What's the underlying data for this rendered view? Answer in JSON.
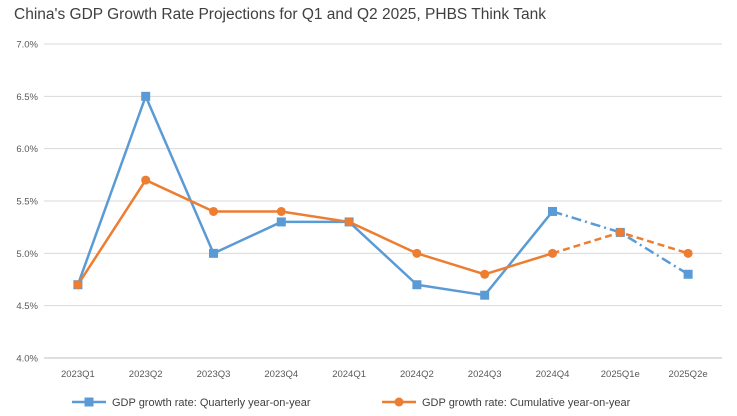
{
  "chart_data": {
    "type": "line",
    "title": "China's GDP Growth Rate Projections for Q1 and Q2 2025, PHBS Think Tank",
    "xlabel": "",
    "ylabel": "",
    "categories": [
      "2023Q1",
      "2023Q2",
      "2023Q3",
      "2023Q4",
      "2024Q1",
      "2024Q2",
      "2024Q3",
      "2024Q4",
      "2025Q1e",
      "2025Q2e"
    ],
    "ylim": [
      4.0,
      7.0
    ],
    "yticks": [
      "4.0%",
      "4.5%",
      "5.0%",
      "5.5%",
      "6.0%",
      "6.5%",
      "7.0%"
    ],
    "grid": true,
    "legend_position": "bottom",
    "projection_start_index": 7,
    "series": [
      {
        "name": "GDP growth rate: Quarterly year-on-year",
        "color": "#5B9BD5",
        "marker": "square",
        "projection_style": "dash-dot",
        "values": [
          4.7,
          6.5,
          5.0,
          5.3,
          5.3,
          4.7,
          4.6,
          5.4,
          5.2,
          4.8
        ]
      },
      {
        "name": "GDP growth rate: Cumulative year-on-year",
        "color": "#ED7D31",
        "marker": "circle",
        "projection_style": "dash",
        "values": [
          4.7,
          5.7,
          5.4,
          5.4,
          5.3,
          5.0,
          4.8,
          5.0,
          5.2,
          5.0
        ]
      }
    ]
  }
}
